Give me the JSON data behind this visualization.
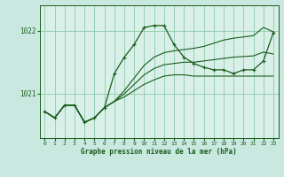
{
  "background_color": "#c8e8e0",
  "plot_bg_color": "#d8f0e8",
  "grid_color": "#90c8b0",
  "line_color": "#1a5c1a",
  "title": "Graphe pression niveau de la mer (hPa)",
  "xlim": [
    -0.5,
    23.5
  ],
  "ylim": [
    1020.3,
    1022.4
  ],
  "yticks": [
    1021,
    1022
  ],
  "xticks": [
    0,
    1,
    2,
    3,
    4,
    5,
    6,
    7,
    8,
    9,
    10,
    11,
    12,
    13,
    14,
    15,
    16,
    17,
    18,
    19,
    20,
    21,
    22,
    23
  ],
  "hours": [
    0,
    1,
    2,
    3,
    4,
    5,
    6,
    7,
    8,
    9,
    10,
    11,
    12,
    13,
    14,
    15,
    16,
    17,
    18,
    19,
    20,
    21,
    22,
    23
  ],
  "curve_main": [
    1020.72,
    1020.62,
    1020.82,
    1020.82,
    1020.55,
    1020.62,
    1020.78,
    1021.32,
    1021.58,
    1021.78,
    1022.05,
    1022.08,
    1022.08,
    1021.78,
    1021.58,
    1021.48,
    1021.42,
    1021.38,
    1021.38,
    1021.32,
    1021.38,
    1021.38,
    1021.52,
    1021.97
  ],
  "curve_line2": [
    1020.72,
    1020.62,
    1020.82,
    1020.82,
    1020.55,
    1020.62,
    1020.78,
    1020.88,
    1020.95,
    1021.05,
    1021.15,
    1021.22,
    1021.28,
    1021.3,
    1021.3,
    1021.28,
    1021.28,
    1021.28,
    1021.28,
    1021.28,
    1021.28,
    1021.28,
    1021.28,
    1021.28
  ],
  "curve_line3": [
    1020.72,
    1020.62,
    1020.82,
    1020.82,
    1020.55,
    1020.62,
    1020.78,
    1020.88,
    1021.05,
    1021.25,
    1021.45,
    1021.58,
    1021.65,
    1021.68,
    1021.7,
    1021.72,
    1021.75,
    1021.8,
    1021.85,
    1021.88,
    1021.9,
    1021.92,
    1022.05,
    1021.98
  ],
  "curve_line4": [
    1020.72,
    1020.62,
    1020.82,
    1020.82,
    1020.55,
    1020.62,
    1020.78,
    1020.88,
    1021.0,
    1021.15,
    1021.3,
    1021.4,
    1021.46,
    1021.48,
    1021.5,
    1021.5,
    1021.52,
    1021.54,
    1021.56,
    1021.58,
    1021.59,
    1021.6,
    1021.66,
    1021.63
  ],
  "figsize": [
    3.2,
    2.0
  ],
  "dpi": 100
}
